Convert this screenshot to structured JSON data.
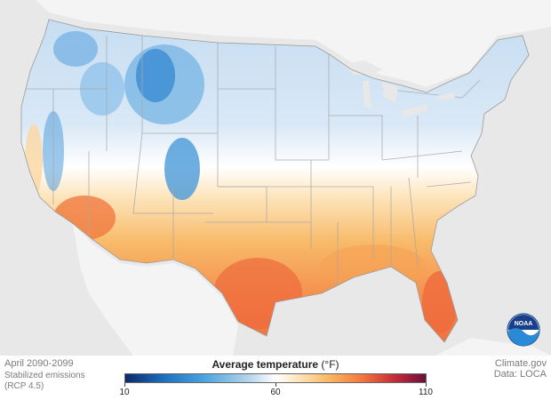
{
  "map": {
    "period": "April 2090-2099",
    "scenario_line1": "Stabilized emissions",
    "scenario_line2": "(RCP 4.5)",
    "logo_text": "NOAA"
  },
  "legend": {
    "title": "Average temperature",
    "unit": "(°F)",
    "min_label": "10",
    "mid_label": "60",
    "max_label": "110",
    "colors": [
      "#0b2a6b",
      "#1f6fbf",
      "#48a3dd",
      "#bcd8ef",
      "#ffffff",
      "#fde3b7",
      "#f9b661",
      "#f3763d",
      "#c92f3a",
      "#6b0f3a"
    ]
  },
  "credits": {
    "site": "Climate.gov",
    "data": "Data: LOCA"
  }
}
